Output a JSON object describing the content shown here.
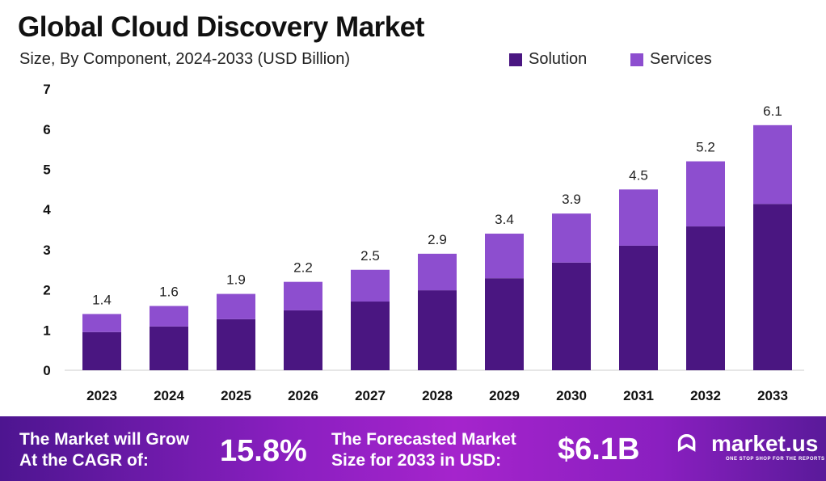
{
  "chart_data": {
    "type": "bar",
    "stacked": true,
    "title": "Global Cloud Discovery Market",
    "subtitle": "Size, By Component, 2024-2033 (USD Billion)",
    "categories": [
      "2023",
      "2024",
      "2025",
      "2026",
      "2027",
      "2028",
      "2029",
      "2030",
      "2031",
      "2032",
      "2033"
    ],
    "series": [
      {
        "name": "Solution",
        "color": "#4a1681",
        "values": [
          0.95,
          1.09,
          1.27,
          1.49,
          1.71,
          1.99,
          2.29,
          2.68,
          3.1,
          3.58,
          4.14
        ]
      },
      {
        "name": "Services",
        "color": "#8d4ecf",
        "values": [
          0.45,
          0.51,
          0.63,
          0.71,
          0.79,
          0.91,
          1.11,
          1.22,
          1.4,
          1.62,
          1.96
        ]
      }
    ],
    "totals": [
      "1.4",
      "1.6",
      "1.9",
      "2.2",
      "2.5",
      "2.9",
      "3.4",
      "3.9",
      "4.5",
      "5.2",
      "6.1"
    ],
    "ylim": [
      0,
      7
    ],
    "yticks": [
      "0",
      "1",
      "2",
      "3",
      "4",
      "5",
      "6",
      "7"
    ],
    "grid": false,
    "legend": "top-right"
  },
  "banner": {
    "cagr_label_1": "The Market will Grow",
    "cagr_label_2": "At the CAGR of:",
    "cagr": "15.8%",
    "forecast_label_1": "The Forecasted Market",
    "forecast_label_2": "Size for 2033 in USD:",
    "forecast": "$6.1B",
    "logo": "market.us",
    "tagline": "ONE STOP SHOP FOR THE REPORTS"
  }
}
